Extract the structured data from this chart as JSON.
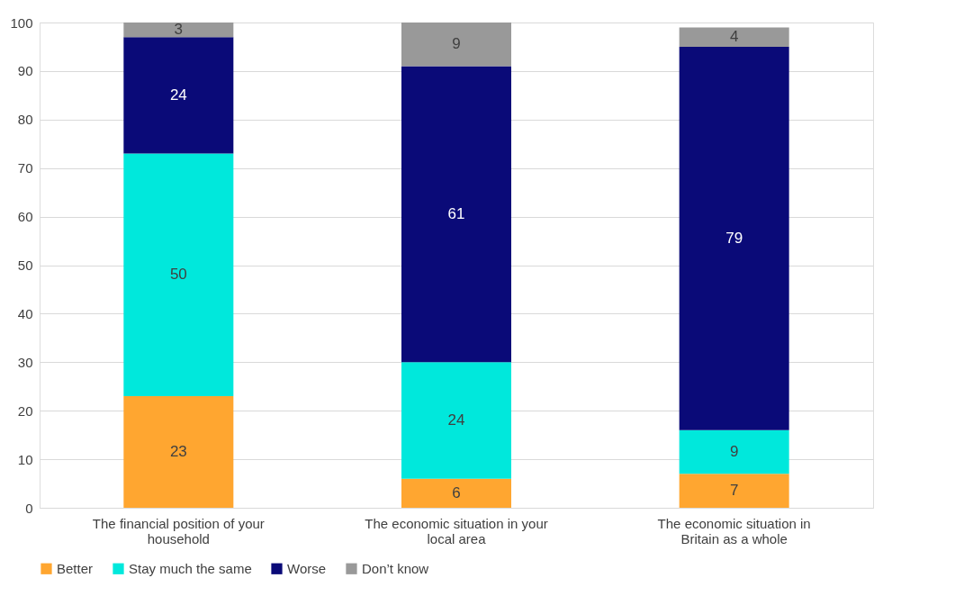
{
  "chart_data": {
    "type": "bar",
    "stacked": true,
    "data_labels": true,
    "grid": "y",
    "legend": "bottom",
    "categories": [
      "The financial position of your household",
      "The economic situation in your local area",
      "The economic situation in Britain as a whole"
    ],
    "series": [
      {
        "name": "Better",
        "color": "#ffa630",
        "values": [
          23,
          6,
          7
        ]
      },
      {
        "name": "Stay much the same",
        "color": "#00e8dc",
        "values": [
          50,
          24,
          9
        ]
      },
      {
        "name": "Worse",
        "color": "#0a0a78",
        "values": [
          24,
          61,
          79
        ]
      },
      {
        "name": "Don’t know",
        "color": "#999999",
        "values": [
          3,
          9,
          4
        ]
      }
    ],
    "ylim": [
      0,
      100
    ],
    "yticks": [
      0,
      10,
      20,
      30,
      40,
      50,
      60,
      70,
      80,
      90,
      100
    ]
  }
}
